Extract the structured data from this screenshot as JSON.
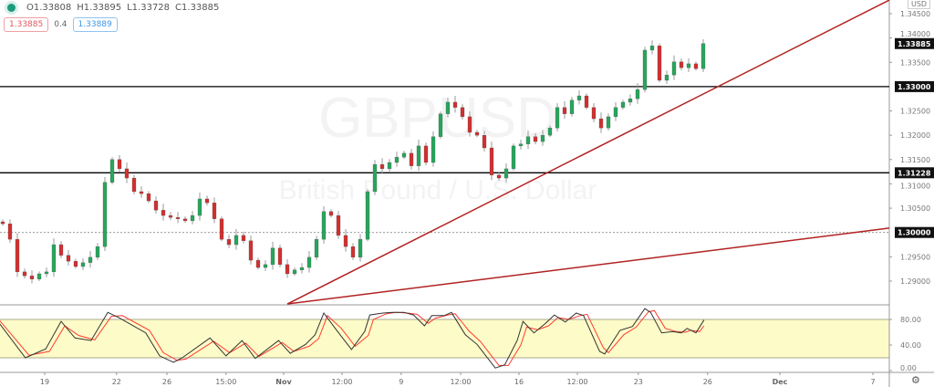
{
  "legend": {
    "symbol_dot_color": "#1a9c7d",
    "ohlc": [
      "O1.33808",
      "H1.33895",
      "L1.33728",
      "C1.33885"
    ]
  },
  "trade": {
    "sell": "1.33885",
    "spread": "0.4",
    "buy": "1.33889"
  },
  "watermark": {
    "symbol": "GBPUSD",
    "description": "British Pound / U.S. Dollar"
  },
  "currency": "USD",
  "colors": {
    "up": "#26a65b",
    "down": "#d32f2f",
    "trendline": "#b22222",
    "stoch_k": "#333333",
    "stoch_d": "#ff3b30",
    "band": "#fdfbc8"
  },
  "price_axis": {
    "ticks": [
      "1.34500",
      "1.34000",
      "1.33500",
      "1.32500",
      "1.32000",
      "1.31500",
      "1.31000",
      "1.30500",
      "1.29500",
      "1.29000"
    ],
    "tick_values": [
      1.345,
      1.34,
      1.335,
      1.325,
      1.32,
      1.315,
      1.31,
      1.305,
      1.295,
      1.29
    ]
  },
  "levels": [
    {
      "label": "1.33885",
      "value": 1.33885,
      "style": "none"
    },
    {
      "label": "1.33000",
      "value": 1.33,
      "style": "solid"
    },
    {
      "label": "1.31228",
      "value": 1.31228,
      "style": "solid"
    },
    {
      "label": "1.30000",
      "value": 1.3,
      "style": "dotted"
    }
  ],
  "trendlines": [
    {
      "from": [
        39,
        1.2853
      ],
      "to": [
        121.5,
        1.3478
      ]
    },
    {
      "from": [
        39,
        1.2853
      ],
      "to": [
        121.5,
        1.3009
      ]
    }
  ],
  "candles": {
    "first_open": 1.3022,
    "close": [
      1.3018,
      1.2986,
      1.2919,
      1.2911,
      1.2904,
      1.2915,
      1.2919,
      1.2975,
      1.2953,
      1.2941,
      1.293,
      1.2938,
      1.2949,
      1.2971,
      1.3103,
      1.315,
      1.3131,
      1.3112,
      1.3084,
      1.308,
      1.3065,
      1.3046,
      1.3035,
      1.3031,
      1.3028,
      1.3024,
      1.3035,
      1.3069,
      1.3061,
      1.3028,
      1.2986,
      1.2975,
      1.2994,
      1.2983,
      1.2943,
      1.2928,
      1.2934,
      1.2968,
      1.2934,
      1.2915,
      1.2923,
      1.2928,
      1.2949,
      1.2986,
      1.3043,
      1.3035,
      1.2994,
      1.2971,
      1.2949,
      1.2986,
      1.3084,
      1.314,
      1.3131,
      1.3144,
      1.3155,
      1.3163,
      1.3137,
      1.3178,
      1.3144,
      1.3197,
      1.3244,
      1.3268,
      1.3257,
      1.3238,
      1.3206,
      1.32,
      1.3174,
      1.3118,
      1.3112,
      1.3131,
      1.3178,
      1.3182,
      1.3197,
      1.3187,
      1.32,
      1.3215,
      1.3257,
      1.3244,
      1.3272,
      1.3281,
      1.3257,
      1.3234,
      1.3215,
      1.3238,
      1.3257,
      1.3268,
      1.3275,
      1.3294,
      1.3375,
      1.3384,
      1.3313,
      1.3324,
      1.3351,
      1.3339,
      1.3347,
      1.3337,
      1.33885
    ]
  },
  "stochastic": {
    "ticks": [
      "80.00",
      "40.00",
      "0.00"
    ],
    "tick_values": [
      80,
      40,
      0
    ],
    "band": [
      20,
      80
    ],
    "k": [
      [
        -0.4,
        73
      ],
      [
        3.1,
        20
      ],
      [
        5.9,
        34
      ],
      [
        8,
        77
      ],
      [
        9.9,
        51
      ],
      [
        12.1,
        47
      ],
      [
        14.4,
        91
      ],
      [
        15.9,
        83
      ],
      [
        19.6,
        59
      ],
      [
        21.5,
        23
      ],
      [
        23.4,
        13
      ],
      [
        24.6,
        20
      ],
      [
        28.4,
        51
      ],
      [
        30.6,
        23
      ],
      [
        32.8,
        47
      ],
      [
        34.6,
        19
      ],
      [
        37.8,
        47
      ],
      [
        39.4,
        27
      ],
      [
        41.5,
        41
      ],
      [
        42.8,
        56
      ],
      [
        44,
        90
      ],
      [
        45.9,
        61
      ],
      [
        47.8,
        33
      ],
      [
        49.6,
        61
      ],
      [
        50.3,
        87
      ],
      [
        52.1,
        90
      ],
      [
        53.4,
        91
      ],
      [
        55,
        91
      ],
      [
        56.3,
        87
      ],
      [
        57.8,
        70
      ],
      [
        58.8,
        86
      ],
      [
        60.5,
        86
      ],
      [
        61.5,
        91
      ],
      [
        63.4,
        56
      ],
      [
        65,
        41
      ],
      [
        67.5,
        4
      ],
      [
        68.8,
        9
      ],
      [
        70.5,
        47
      ],
      [
        71.3,
        77
      ],
      [
        72.8,
        59
      ],
      [
        74.3,
        73
      ],
      [
        75.6,
        87
      ],
      [
        77.1,
        76
      ],
      [
        78.6,
        90
      ],
      [
        79.6,
        86
      ],
      [
        81.8,
        30
      ],
      [
        82.5,
        26
      ],
      [
        84.6,
        63
      ],
      [
        86.3,
        69
      ],
      [
        88,
        97
      ],
      [
        88.8,
        91
      ],
      [
        90.3,
        59
      ],
      [
        91.8,
        61
      ],
      [
        93,
        59
      ],
      [
        93.8,
        66
      ],
      [
        95,
        59
      ],
      [
        96.1,
        79
      ]
    ],
    "d": [
      [
        -0.4,
        78
      ],
      [
        3.6,
        24
      ],
      [
        6.4,
        30
      ],
      [
        8.5,
        70
      ],
      [
        10.4,
        55
      ],
      [
        12.6,
        48
      ],
      [
        14.9,
        85
      ],
      [
        16.4,
        86
      ],
      [
        20.1,
        63
      ],
      [
        22,
        28
      ],
      [
        23.9,
        16
      ],
      [
        25.1,
        18
      ],
      [
        28.9,
        46
      ],
      [
        31.1,
        28
      ],
      [
        33.3,
        43
      ],
      [
        35.1,
        22
      ],
      [
        38.3,
        44
      ],
      [
        39.9,
        30
      ],
      [
        42,
        38
      ],
      [
        43.3,
        50
      ],
      [
        44.5,
        86
      ],
      [
        46.4,
        66
      ],
      [
        48.3,
        38
      ],
      [
        50.1,
        55
      ],
      [
        50.8,
        80
      ],
      [
        52.6,
        89
      ],
      [
        53.9,
        91
      ],
      [
        55.5,
        90
      ],
      [
        56.8,
        88
      ],
      [
        58.3,
        74
      ],
      [
        59.3,
        82
      ],
      [
        61,
        87
      ],
      [
        62,
        89
      ],
      [
        63.9,
        62
      ],
      [
        65.5,
        45
      ],
      [
        68,
        8
      ],
      [
        69.3,
        8
      ],
      [
        71,
        40
      ],
      [
        71.8,
        68
      ],
      [
        73.3,
        64
      ],
      [
        74.8,
        70
      ],
      [
        76.1,
        83
      ],
      [
        77.6,
        80
      ],
      [
        79.1,
        86
      ],
      [
        80.1,
        88
      ],
      [
        82.3,
        36
      ],
      [
        83,
        28
      ],
      [
        85.1,
        56
      ],
      [
        86.8,
        68
      ],
      [
        88.5,
        92
      ],
      [
        89.3,
        94
      ],
      [
        90.8,
        66
      ],
      [
        92.3,
        61
      ],
      [
        93.5,
        60
      ],
      [
        94.3,
        63
      ],
      [
        95.5,
        61
      ],
      [
        96.1,
        70
      ]
    ]
  },
  "time_axis": [
    {
      "label": "19",
      "index": 5.75
    },
    {
      "label": "22",
      "index": 15.6
    },
    {
      "label": "26",
      "index": 22.5
    },
    {
      "label": "15:00",
      "index": 30.6
    },
    {
      "label": "Nov",
      "index": 38.5,
      "bold": true
    },
    {
      "label": "12:00",
      "index": 46.5
    },
    {
      "label": "9",
      "index": 54.6
    },
    {
      "label": "12:00",
      "index": 62.75
    },
    {
      "label": "16",
      "index": 70.75
    },
    {
      "label": "12:00",
      "index": 78.75
    },
    {
      "label": "23",
      "index": 87.1
    },
    {
      "label": "26",
      "index": 96.6
    },
    {
      "label": "Dec",
      "index": 106.5,
      "bold": true
    },
    {
      "label": "7",
      "index": 119.25
    }
  ]
}
